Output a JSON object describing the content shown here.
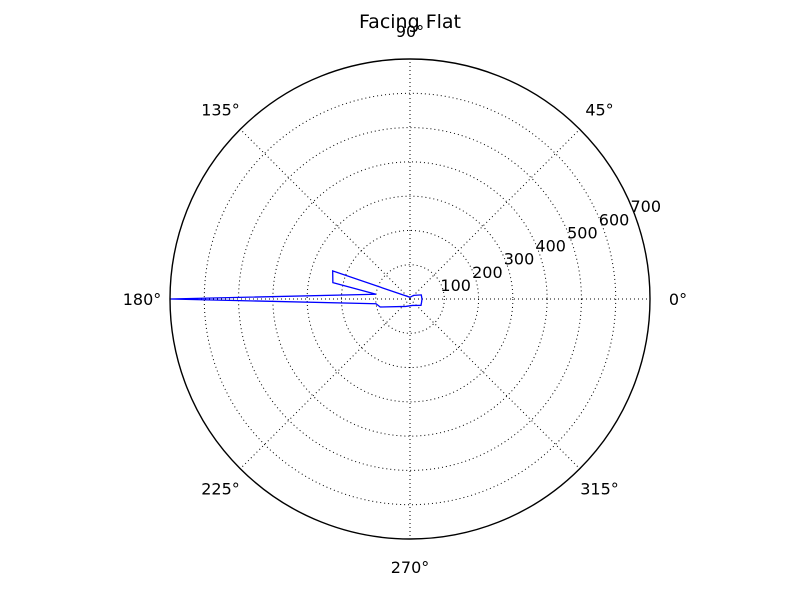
{
  "chart_data": {
    "type": "line",
    "subtype": "polar",
    "title": "Facing Flat",
    "angle_unit": "degrees",
    "r_max": 700,
    "r_ticks": [
      100,
      200,
      300,
      400,
      500,
      600,
      700
    ],
    "r_tick_labels": [
      "100",
      "200",
      "300",
      "400",
      "500",
      "600",
      "700"
    ],
    "theta_ticks": [
      0,
      45,
      90,
      135,
      180,
      225,
      270,
      315
    ],
    "theta_tick_labels": [
      "0°",
      "45°",
      "90°",
      "135°",
      "180°",
      "225°",
      "270°",
      "315°"
    ],
    "grid": true,
    "series": [
      {
        "color": "#0000ff",
        "theta": [
          0,
          20,
          45,
          90,
          160,
          168,
          172,
          180,
          188,
          195,
          240,
          290,
          330,
          345,
          360
        ],
        "r": [
          35,
          35,
          15,
          5,
          240,
          230,
          100,
          700,
          100,
          90,
          25,
          20,
          37,
          35,
          35
        ]
      }
    ]
  }
}
